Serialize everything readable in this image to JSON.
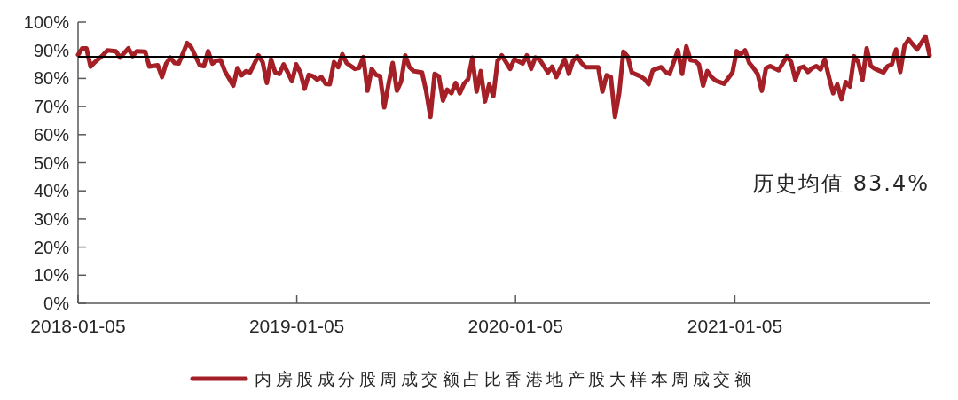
{
  "chart_data": {
    "type": "line",
    "x": [
      "2018-01-05",
      "2018-01-12",
      "2018-01-19",
      "2018-01-26",
      "2018-02-02",
      "2018-02-16",
      "2018-02-23",
      "2018-03-09",
      "2018-03-16",
      "2018-03-30",
      "2018-04-06",
      "2018-04-13",
      "2018-04-27",
      "2018-05-04",
      "2018-05-18",
      "2018-05-25",
      "2018-06-01",
      "2018-06-08",
      "2018-06-15",
      "2018-06-22",
      "2018-07-06",
      "2018-07-13",
      "2018-07-27",
      "2018-08-03",
      "2018-08-10",
      "2018-08-17",
      "2018-08-24",
      "2018-08-31",
      "2018-09-07",
      "2018-09-21",
      "2018-09-28",
      "2018-10-05",
      "2018-10-12",
      "2018-10-19",
      "2018-11-02",
      "2018-11-09",
      "2018-11-16",
      "2018-11-23",
      "2018-11-30",
      "2018-12-07",
      "2018-12-14",
      "2018-12-21",
      "2018-12-28",
      "2019-01-04",
      "2019-01-11",
      "2019-01-18",
      "2019-01-25",
      "2019-02-01",
      "2019-02-08",
      "2019-02-15",
      "2019-02-22",
      "2019-03-01",
      "2019-03-08",
      "2019-03-15",
      "2019-03-22",
      "2019-03-29",
      "2019-04-12",
      "2019-04-19",
      "2019-04-26",
      "2019-05-03",
      "2019-05-10",
      "2019-05-17",
      "2019-05-24",
      "2019-05-31",
      "2019-06-07",
      "2019-06-14",
      "2019-06-21",
      "2019-06-28",
      "2019-07-05",
      "2019-07-12",
      "2019-07-19",
      "2019-08-02",
      "2019-08-09",
      "2019-08-16",
      "2019-08-23",
      "2019-08-30",
      "2019-09-06",
      "2019-09-13",
      "2019-09-20",
      "2019-09-27",
      "2019-10-04",
      "2019-10-11",
      "2019-10-18",
      "2019-10-25",
      "2019-11-01",
      "2019-11-08",
      "2019-11-15",
      "2019-11-22",
      "2019-11-29",
      "2019-12-06",
      "2019-12-13",
      "2019-12-27",
      "2020-01-03",
      "2020-01-17",
      "2020-01-24",
      "2020-01-31",
      "2020-02-07",
      "2020-02-14",
      "2020-02-28",
      "2020-03-06",
      "2020-03-13",
      "2020-03-27",
      "2020-04-03",
      "2020-04-10",
      "2020-04-17",
      "2020-04-24",
      "2020-05-01",
      "2020-05-22",
      "2020-05-29",
      "2020-06-05",
      "2020-06-12",
      "2020-06-19",
      "2020-06-26",
      "2020-07-03",
      "2020-07-10",
      "2020-07-17",
      "2020-07-31",
      "2020-08-07",
      "2020-08-14",
      "2020-08-21",
      "2020-09-04",
      "2020-09-11",
      "2020-09-18",
      "2020-10-02",
      "2020-10-09",
      "2020-10-16",
      "2020-10-23",
      "2020-10-30",
      "2020-11-06",
      "2020-11-13",
      "2020-11-20",
      "2020-11-27",
      "2020-12-04",
      "2020-12-18",
      "2021-01-01",
      "2021-01-08",
      "2021-01-15",
      "2021-01-22",
      "2021-01-29",
      "2021-02-05",
      "2021-02-12",
      "2021-02-19",
      "2021-02-26",
      "2021-03-05",
      "2021-03-19",
      "2021-04-02",
      "2021-04-09",
      "2021-04-16",
      "2021-04-23",
      "2021-04-30",
      "2021-05-07",
      "2021-05-14",
      "2021-05-21",
      "2021-05-28",
      "2021-06-04",
      "2021-06-11",
      "2021-06-18",
      "2021-06-25",
      "2021-07-02",
      "2021-07-09",
      "2021-07-16",
      "2021-07-23",
      "2021-07-30",
      "2021-08-06",
      "2021-08-13",
      "2021-08-20",
      "2021-08-27",
      "2021-09-10",
      "2021-09-17",
      "2021-09-24",
      "2021-10-01",
      "2021-10-08",
      "2021-10-15",
      "2021-10-22",
      "2021-10-29",
      "2021-11-05",
      "2021-11-19",
      "2021-11-26"
    ],
    "series": [
      {
        "name": "内房股成分股周成交额占比香港地产股大样本周成交额",
        "color": "#a51f26",
        "values": [
          88.4,
          90.7,
          90.7,
          84.2,
          85.8,
          88.4,
          90.0,
          89.7,
          87.4,
          90.7,
          87.9,
          89.7,
          89.5,
          84.2,
          84.7,
          80.5,
          85.3,
          87.4,
          85.5,
          85.3,
          92.6,
          91.0,
          84.7,
          84.4,
          89.7,
          85.3,
          86.3,
          86.5,
          82.6,
          77.4,
          83.7,
          81.1,
          82.6,
          82.1,
          88.2,
          85.8,
          78.4,
          86.8,
          82.1,
          81.6,
          85.0,
          82.1,
          79.0,
          85.0,
          82.1,
          76.3,
          81.3,
          80.8,
          79.5,
          80.5,
          78.1,
          77.9,
          85.8,
          84.0,
          88.6,
          85.5,
          83.4,
          83.7,
          87.6,
          75.6,
          83.4,
          81.3,
          80.8,
          69.7,
          77.9,
          85.5,
          75.6,
          78.9,
          88.2,
          84.0,
          82.6,
          82.1,
          75.3,
          66.3,
          81.6,
          80.8,
          72.1,
          76.0,
          74.7,
          78.4,
          74.7,
          78.1,
          79.8,
          87.4,
          75.3,
          82.6,
          71.8,
          77.9,
          73.7,
          86.3,
          88.2,
          83.4,
          86.8,
          85.3,
          88.2,
          83.4,
          87.4,
          86.8,
          82.1,
          84.2,
          80.5,
          86.8,
          81.6,
          86.3,
          87.9,
          85.5,
          84.0,
          84.0,
          75.3,
          81.1,
          80.5,
          66.3,
          74.7,
          89.5,
          87.9,
          82.1,
          80.8,
          79.8,
          77.9,
          82.9,
          84.0,
          82.3,
          81.6,
          90.0,
          81.6,
          91.4,
          86.5,
          86.3,
          85.0,
          77.4,
          82.6,
          80.5,
          79.2,
          78.1,
          82.1,
          89.7,
          88.6,
          90.0,
          85.5,
          83.7,
          81.6,
          75.6,
          83.7,
          84.4,
          82.9,
          87.9,
          85.8,
          79.5,
          83.7,
          84.2,
          82.3,
          83.7,
          84.4,
          83.2,
          86.8,
          80.5,
          74.7,
          77.9,
          72.6,
          78.7,
          77.1,
          87.9,
          85.8,
          79.5,
          90.7,
          84.4,
          83.4,
          82.1,
          84.4,
          85.0,
          90.3,
          82.3,
          91.6,
          93.9,
          92.1,
          90.3,
          94.9,
          88.2
        ]
      }
    ],
    "xlim": [
      "2018-01-05",
      "2021-11-26"
    ],
    "xticks": [
      "2018-01-05",
      "2019-01-05",
      "2020-01-05",
      "2021-01-05"
    ],
    "ylim": [
      0,
      100
    ],
    "yticks": [
      {
        "value": 0,
        "label": "0%"
      },
      {
        "value": 10,
        "label": "10%"
      },
      {
        "value": 20,
        "label": "20%"
      },
      {
        "value": 30,
        "label": "30%"
      },
      {
        "value": 40,
        "label": "40%"
      },
      {
        "value": 50,
        "label": "50%"
      },
      {
        "value": 60,
        "label": "60%"
      },
      {
        "value": 70,
        "label": "70%"
      },
      {
        "value": 80,
        "label": "80%"
      },
      {
        "value": 90,
        "label": "90%"
      },
      {
        "value": 100,
        "label": "100%"
      }
    ],
    "ref_lines": [
      {
        "axis": "y",
        "value": 87.7,
        "color": "#000000"
      }
    ],
    "annotations": [
      "历史均值 83.4%"
    ],
    "legend": "bottom",
    "line_style": "solid"
  }
}
